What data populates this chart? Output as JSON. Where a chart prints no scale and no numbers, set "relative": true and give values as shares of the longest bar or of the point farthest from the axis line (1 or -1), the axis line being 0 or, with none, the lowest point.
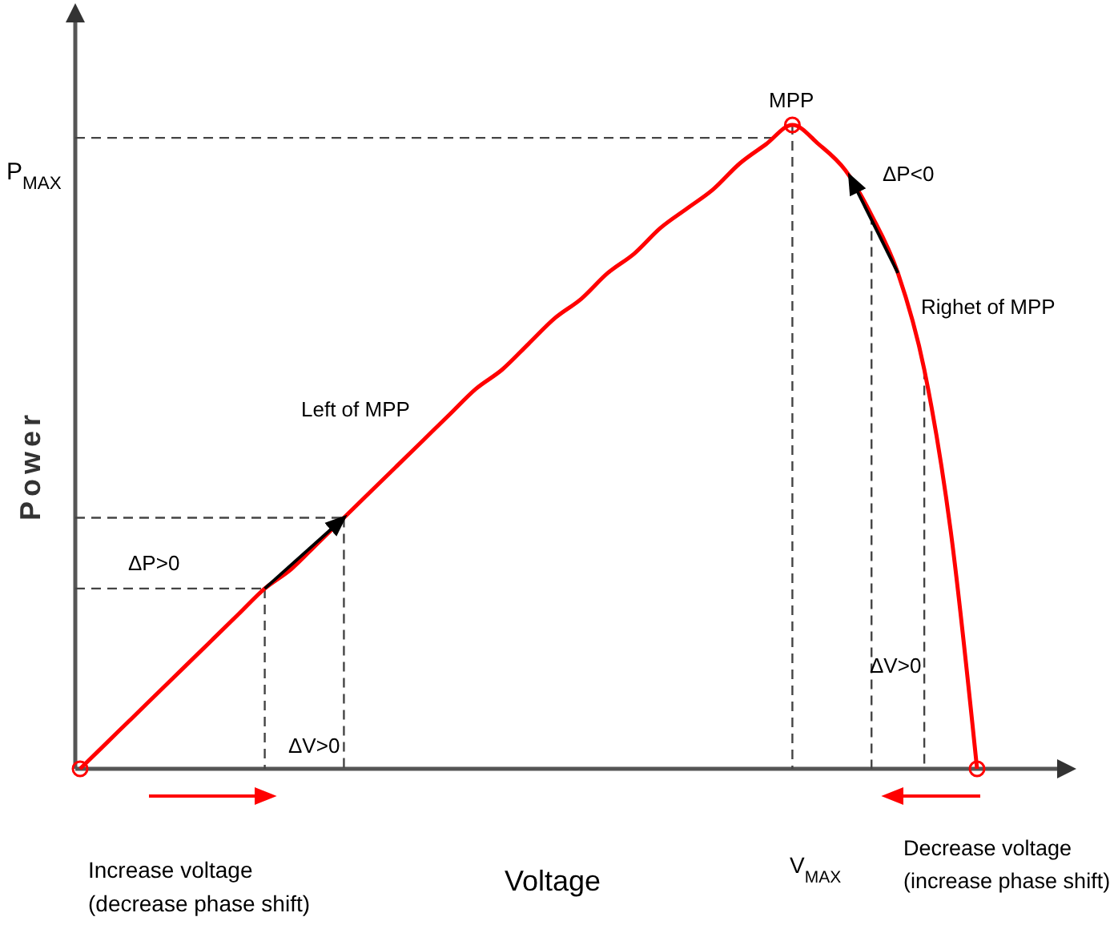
{
  "chart_data": {
    "type": "line",
    "relative": true,
    "xlabel": "Voltage",
    "ylabel": "Power",
    "categories": [
      null,
      null,
      null,
      null,
      null,
      null,
      null,
      null,
      null,
      null,
      null,
      null,
      null,
      null,
      null,
      null,
      null,
      null,
      null,
      null,
      null,
      null,
      null,
      null,
      null,
      null,
      null,
      null,
      null,
      null,
      null,
      null,
      null,
      null,
      null
    ],
    "series": [
      {
        "color": "#ff0000",
        "values": [
          0,
          0.04,
          0.08,
          0.12,
          0.16,
          0.2,
          0.24,
          0.28,
          0.31,
          0.35,
          0.39,
          0.43,
          0.47,
          0.51,
          0.55,
          0.59,
          0.62,
          0.66,
          0.7,
          0.73,
          0.77,
          0.8,
          0.84,
          0.87,
          0.9,
          0.94,
          0.97,
          1,
          0.97,
          0.93,
          0.86,
          0.77,
          0.62,
          0.37,
          0
        ]
      }
    ],
    "ref_lines": [
      {
        "axis": "y",
        "value": 0.98,
        "color": "#444444",
        "line_style": "dashed"
      },
      {
        "axis": "y",
        "value": 0.39,
        "color": "#444444",
        "line_style": "dashed"
      },
      {
        "axis": "y",
        "value": 0.28,
        "color": "#444444",
        "line_style": "dashed"
      }
    ],
    "annotations": [
      "P$_{MAX}$",
      "MPP",
      "ΔP<0",
      "Righet of MPP",
      "Left of MPP",
      "ΔP>0",
      "ΔV>0",
      "ΔV>0",
      "V$_{MAX}$",
      "Increase voltage\n(decrease phase shift)",
      "Decrease voltage\n(increase phase shift)"
    ]
  }
}
